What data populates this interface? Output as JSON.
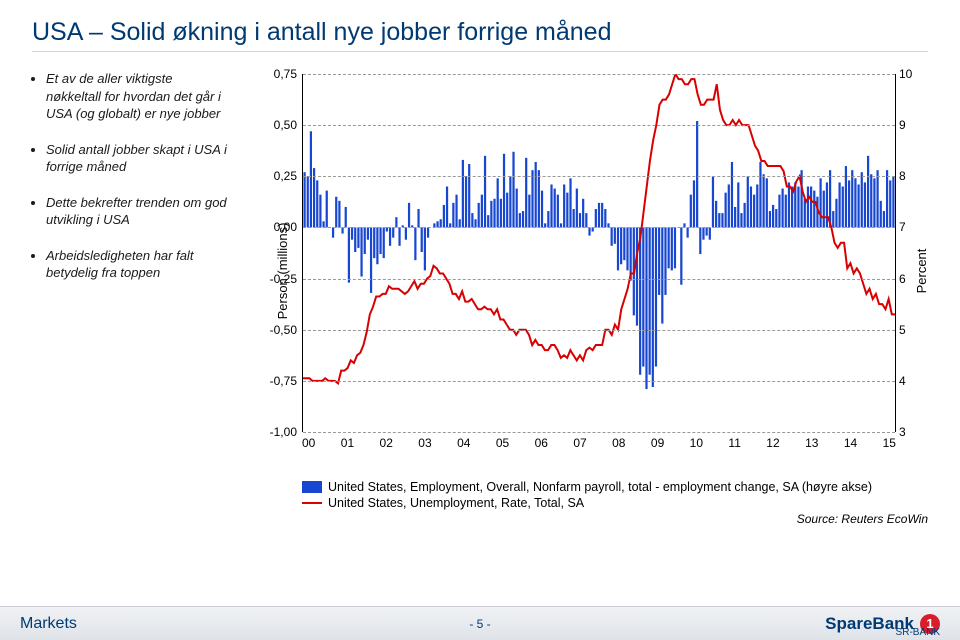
{
  "title": "USA – Solid økning i antall nye jobber forrige måned",
  "bullets": [
    "Et av de aller viktigste nøkkeltall for hvordan det går i USA (og globalt) er nye jobber",
    "Solid antall jobber skapt i USA i forrige måned",
    "Dette bekrefter trenden om god utvikling i USA",
    "Arbeidsledigheten har falt betydelig fra toppen"
  ],
  "chart": {
    "type": "bar+line",
    "y_left": {
      "label": "Person (millions)",
      "min": -1.0,
      "max": 0.75,
      "ticks": [
        "0,75",
        "0,50",
        "0,25",
        "0,00",
        "-0,25",
        "-0,50",
        "-0,75",
        "-1,00"
      ],
      "tick_vals": [
        0.75,
        0.5,
        0.25,
        0.0,
        -0.25,
        -0.5,
        -0.75,
        -1.0
      ]
    },
    "y_right": {
      "label": "Percent",
      "min": 3,
      "max": 10,
      "ticks": [
        "10",
        "9",
        "8",
        "7",
        "6",
        "5",
        "4",
        "3"
      ],
      "tick_vals": [
        10,
        9,
        8,
        7,
        6,
        5,
        4,
        3
      ]
    },
    "x_labels": [
      "00",
      "01",
      "02",
      "03",
      "04",
      "05",
      "06",
      "07",
      "08",
      "09",
      "10",
      "11",
      "12",
      "13",
      "14",
      "15"
    ],
    "bar_color": "#1746d1",
    "line_color": "#d80000",
    "line_width": 2,
    "grid_color": "#999999",
    "background_color": "#ffffff",
    "bars": [
      0.27,
      0.25,
      0.47,
      0.29,
      0.23,
      0.16,
      0.03,
      0.18,
      0.0,
      -0.05,
      0.15,
      0.13,
      -0.03,
      0.1,
      -0.27,
      -0.06,
      -0.12,
      -0.1,
      -0.24,
      -0.13,
      -0.06,
      -0.32,
      -0.15,
      -0.18,
      -0.13,
      -0.15,
      -0.02,
      -0.09,
      -0.05,
      0.05,
      -0.09,
      0.01,
      -0.06,
      0.12,
      0.01,
      -0.16,
      0.09,
      -0.12,
      -0.21,
      -0.05,
      0.0,
      0.02,
      0.03,
      0.04,
      0.11,
      0.2,
      0.02,
      0.12,
      0.16,
      0.04,
      0.33,
      0.25,
      0.31,
      0.07,
      0.04,
      0.12,
      0.16,
      0.35,
      0.06,
      0.13,
      0.14,
      0.24,
      0.14,
      0.36,
      0.17,
      0.25,
      0.37,
      0.19,
      0.07,
      0.08,
      0.34,
      0.16,
      0.28,
      0.32,
      0.28,
      0.18,
      0.02,
      0.08,
      0.21,
      0.19,
      0.16,
      0.02,
      0.21,
      0.17,
      0.24,
      0.09,
      0.19,
      0.07,
      0.14,
      0.07,
      -0.04,
      -0.02,
      0.09,
      0.12,
      0.12,
      0.09,
      0.02,
      -0.09,
      -0.08,
      -0.21,
      -0.18,
      -0.16,
      -0.21,
      -0.26,
      -0.43,
      -0.48,
      -0.72,
      -0.68,
      -0.79,
      -0.72,
      -0.78,
      -0.68,
      -0.33,
      -0.47,
      -0.33,
      -0.2,
      -0.21,
      -0.2,
      0.0,
      -0.28,
      0.02,
      -0.05,
      0.16,
      0.23,
      0.52,
      -0.13,
      -0.06,
      -0.04,
      -0.06,
      0.25,
      0.13,
      0.07,
      0.07,
      0.17,
      0.21,
      0.32,
      0.1,
      0.22,
      0.07,
      0.12,
      0.25,
      0.2,
      0.16,
      0.21,
      0.32,
      0.26,
      0.24,
      0.08,
      0.11,
      0.09,
      0.16,
      0.19,
      0.16,
      0.22,
      0.2,
      0.22,
      0.2,
      0.28,
      0.14,
      0.2,
      0.2,
      0.18,
      0.15,
      0.24,
      0.18,
      0.22,
      0.28,
      0.08,
      0.14,
      0.22,
      0.2,
      0.3,
      0.23,
      0.28,
      0.24,
      0.21,
      0.27,
      0.22,
      0.35,
      0.26,
      0.24,
      0.28,
      0.13,
      0.08,
      0.28,
      0.23,
      0.25
    ],
    "line": [
      4.05,
      4.05,
      4.05,
      4.0,
      4.0,
      4.0,
      4.0,
      4.05,
      4.0,
      4.0,
      4.0,
      3.95,
      4.2,
      4.2,
      4.25,
      4.4,
      4.35,
      4.5,
      4.55,
      4.7,
      4.95,
      5.3,
      5.45,
      5.65,
      5.65,
      5.7,
      5.7,
      5.85,
      5.8,
      5.8,
      5.8,
      5.75,
      5.7,
      5.75,
      5.85,
      5.95,
      5.8,
      5.9,
      5.9,
      6.0,
      6.05,
      6.25,
      6.2,
      6.1,
      6.1,
      6.0,
      5.9,
      5.7,
      5.7,
      5.6,
      5.75,
      5.55,
      5.55,
      5.6,
      5.5,
      5.4,
      5.4,
      5.45,
      5.4,
      5.4,
      5.3,
      5.4,
      5.2,
      5.2,
      5.1,
      5.0,
      5.0,
      4.9,
      5.0,
      5.0,
      5.0,
      4.9,
      4.7,
      4.8,
      4.7,
      4.7,
      4.6,
      4.6,
      4.7,
      4.7,
      4.6,
      4.45,
      4.5,
      4.45,
      4.6,
      4.5,
      4.4,
      4.5,
      4.4,
      4.6,
      4.65,
      4.6,
      4.7,
      4.7,
      4.7,
      5.0,
      5.0,
      4.9,
      5.1,
      5.0,
      5.4,
      5.6,
      5.8,
      6.1,
      6.1,
      6.5,
      6.8,
      7.3,
      7.8,
      8.3,
      8.7,
      9.0,
      9.4,
      9.5,
      9.5,
      9.6,
      9.8,
      10.0,
      9.9,
      9.9,
      9.8,
      9.8,
      9.9,
      9.9,
      9.6,
      9.4,
      9.4,
      9.5,
      9.5,
      9.5,
      9.8,
      9.3,
      9.1,
      9.0,
      9.0,
      9.1,
      9.0,
      9.1,
      9.0,
      9.0,
      9.0,
      8.8,
      8.6,
      8.5,
      8.3,
      8.3,
      8.2,
      8.2,
      8.2,
      8.2,
      8.2,
      8.1,
      7.8,
      7.8,
      7.7,
      7.9,
      8.0,
      7.7,
      7.5,
      7.6,
      7.5,
      7.5,
      7.3,
      7.2,
      7.2,
      7.2,
      7.0,
      6.7,
      6.6,
      6.7,
      6.7,
      6.2,
      6.3,
      6.1,
      6.2,
      6.1,
      5.9,
      5.7,
      5.8,
      5.6,
      5.7,
      5.5,
      5.5,
      5.4,
      5.6,
      5.3,
      5.3
    ],
    "legend_bar": "United States, Employment, Overall, Nonfarm payroll, total - employment change, SA (høyre akse)",
    "legend_line": "United States, Unemployment, Rate, Total, SA",
    "source": "Source: Reuters EcoWin"
  },
  "footer": {
    "left": "Markets",
    "center": "- 5 -",
    "brand": "SpareBank",
    "brand_badge": "1",
    "brand_sub": "SR-BANK"
  }
}
